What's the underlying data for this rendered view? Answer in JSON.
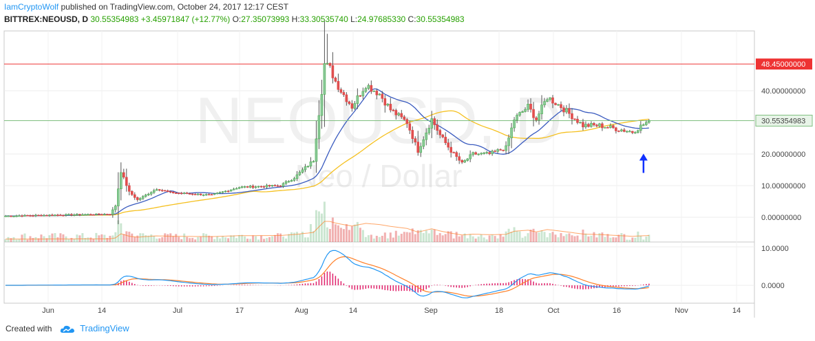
{
  "header": {
    "author": "IamCryptoWolf",
    "published": "published on TradingView.com, October 24, 2017 12:17 CEST",
    "symbol": "BITTREX:NEOUSD, D",
    "last": "30.55354983",
    "change": "+3.45971847 (+12.77%)",
    "open_label": "O:",
    "open": "27.35073993",
    "high_label": "H:",
    "high": "33.30535740",
    "low_label": "L:",
    "low": "24.97685330",
    "close_label": "C:",
    "close": "30.55354983"
  },
  "watermark": {
    "symbol": "NEOUSD, D",
    "name": "Neo / Dollar"
  },
  "footer": {
    "created_with": "Created with",
    "brand": "TradingView"
  },
  "colors": {
    "up": "#4caf50",
    "up_fill": "#8bc89a",
    "down": "#e04545",
    "down_fill": "#e05050",
    "ma_fast": "#3a5bbf",
    "ma_slow": "#f5c01f",
    "hline": "#ee3333",
    "last_line": "#7fbf7f",
    "macd": "#2196f3",
    "signal": "#ff7f27",
    "hist": "#e0206a",
    "arrow": "#1030ff"
  },
  "chart_data": {
    "type": "candlestick",
    "x_ticks": [
      "Jun",
      "14",
      "Jul",
      "17",
      "Aug",
      "14",
      "Sep",
      "18",
      "Oct",
      "16",
      "Nov",
      "14"
    ],
    "y_ticks": [
      "0.00000000",
      "10.00000000",
      "20.00000000",
      "30.55354983",
      "40.00000000",
      "48.45000000"
    ],
    "ylim": [
      -5,
      54
    ],
    "horizontal_line": {
      "value": 48.45,
      "label": "48.45000000"
    },
    "last_price": {
      "value": 30.55354983,
      "label": "30.55354983"
    },
    "price_knots": [
      [
        0,
        0.4
      ],
      [
        18,
        0.7
      ],
      [
        38,
        1.0
      ],
      [
        40,
        3.6
      ],
      [
        42,
        14.5
      ],
      [
        45,
        8
      ],
      [
        48,
        5.5
      ],
      [
        55,
        9
      ],
      [
        60,
        7.8
      ],
      [
        75,
        7
      ],
      [
        85,
        9.5
      ],
      [
        100,
        10
      ],
      [
        105,
        12.5
      ],
      [
        112,
        18
      ],
      [
        114,
        33
      ],
      [
        115,
        40
      ],
      [
        116,
        48.5
      ],
      [
        118,
        47
      ],
      [
        120,
        43
      ],
      [
        122,
        40
      ],
      [
        126,
        35
      ],
      [
        131,
        42
      ],
      [
        136,
        39
      ],
      [
        140,
        34
      ],
      [
        146,
        30
      ],
      [
        150,
        21
      ],
      [
        155,
        31
      ],
      [
        158,
        26
      ],
      [
        162,
        21
      ],
      [
        166,
        17
      ],
      [
        170,
        20
      ],
      [
        176,
        20
      ],
      [
        182,
        22
      ],
      [
        185,
        31
      ],
      [
        190,
        35
      ],
      [
        193,
        31
      ],
      [
        197,
        38
      ],
      [
        202,
        35
      ],
      [
        210,
        29
      ],
      [
        216,
        29
      ],
      [
        222,
        28
      ],
      [
        228,
        27
      ],
      [
        234,
        30.5
      ]
    ],
    "ma_fast": {
      "description": "50-period moving average"
    },
    "ma_slow": {
      "description": "100-period moving average"
    },
    "macd": {
      "y_ticks": [
        "10.0000",
        "0.0000"
      ],
      "ylim": [
        -4.5,
        11
      ]
    },
    "annotations": [
      {
        "type": "arrow-up",
        "day": 231,
        "price": 17.5
      }
    ]
  }
}
